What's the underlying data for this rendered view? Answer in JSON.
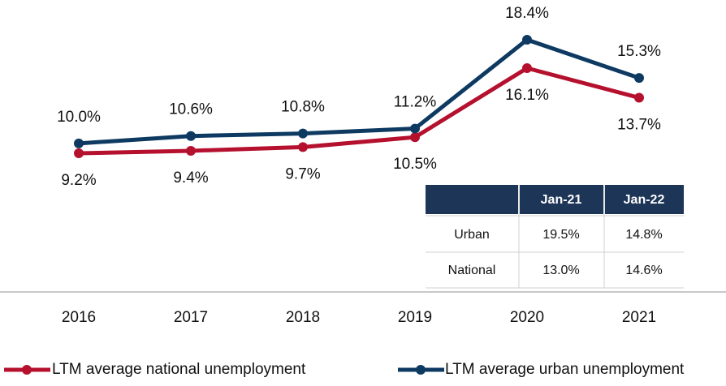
{
  "chart_data": {
    "type": "line",
    "categories": [
      "2016",
      "2017",
      "2018",
      "2019",
      "2020",
      "2021"
    ],
    "series": [
      {
        "name": "LTM average national unemployment",
        "color": "#b5112e",
        "values": [
          9.2,
          9.4,
          9.7,
          10.5,
          16.1,
          13.7
        ],
        "value_labels": [
          "9.2%",
          "9.4%",
          "9.7%",
          "10.5%",
          "16.1%",
          "13.7%"
        ]
      },
      {
        "name": "LTM average urban unemployment",
        "color": "#0e3a62",
        "values": [
          10.0,
          10.6,
          10.8,
          11.2,
          18.4,
          15.3
        ],
        "value_labels": [
          "10.0%",
          "10.6%",
          "10.8%",
          "11.2%",
          "18.4%",
          "15.3%"
        ]
      }
    ]
  },
  "table": {
    "header": [
      "Jan-21",
      "Jan-22"
    ],
    "rows": [
      [
        "Urban",
        "19.5%",
        "14.8%"
      ],
      [
        "National",
        "13.0%",
        "14.6%"
      ]
    ]
  }
}
